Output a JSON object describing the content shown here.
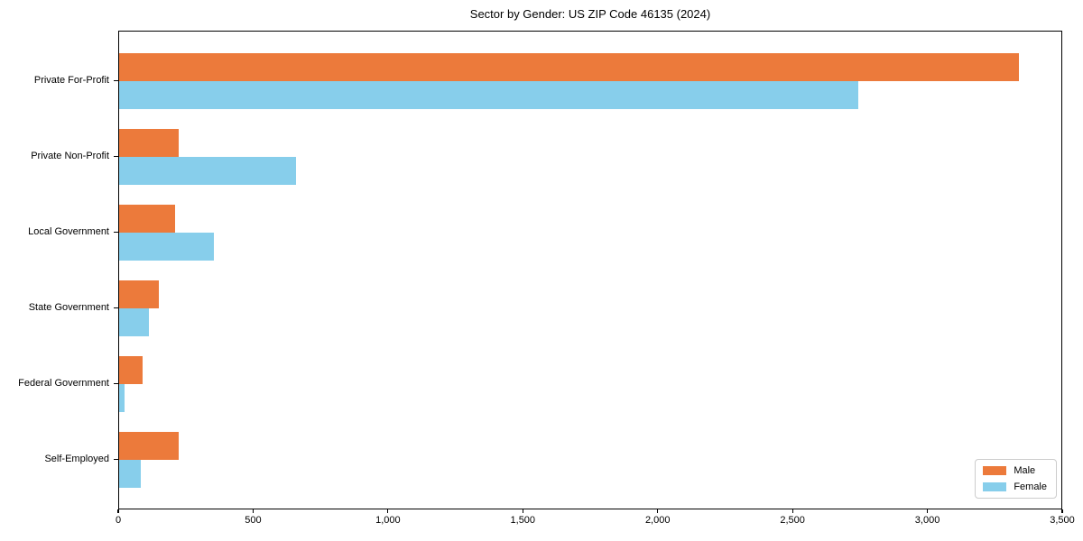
{
  "chart_data": {
    "type": "bar",
    "orientation": "horizontal",
    "title": "Sector by Gender: US ZIP Code 46135 (2024)",
    "categories": [
      "Private For-Profit",
      "Private Non-Profit",
      "Local Government",
      "State Government",
      "Federal Government",
      "Self-Employed"
    ],
    "series": [
      {
        "name": "Male",
        "color": "#EC7A3B",
        "values": [
          3335,
          220,
          207,
          147,
          87,
          220
        ]
      },
      {
        "name": "Female",
        "color": "#87CEEB",
        "values": [
          2740,
          655,
          350,
          110,
          20,
          80
        ]
      }
    ],
    "xlabel": "",
    "ylabel": "",
    "xlim": [
      0,
      3500
    ],
    "xticks": [
      0,
      500,
      1000,
      1500,
      2000,
      2500,
      3000,
      3500
    ],
    "xtick_labels": [
      "0",
      "500",
      "1,000",
      "1,500",
      "2,000",
      "2,500",
      "3,000",
      "3,500"
    ],
    "grid": false,
    "legend_position": "lower right",
    "legend_labels": [
      "Male",
      "Female"
    ]
  }
}
